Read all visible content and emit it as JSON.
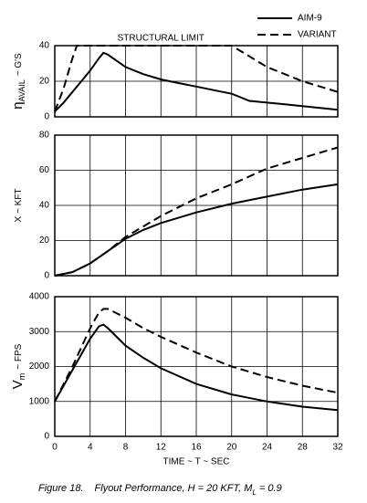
{
  "chart_data": [
    {
      "type": "line",
      "annotation": "STRUCTURAL LIMIT",
      "legend": "top-right",
      "ylabel": [
        "η",
        "AVAIL",
        "~ G'S"
      ],
      "xlim": [
        0,
        32
      ],
      "xticks": [
        0,
        4,
        8,
        12,
        16,
        20,
        24,
        28,
        32
      ],
      "xtick_labels": false,
      "ylim": [
        0,
        40
      ],
      "yticks": [
        0,
        20,
        40
      ],
      "grid": true,
      "series": [
        {
          "name": "AIM-9",
          "color": "#000000",
          "dash": false,
          "x": [
            0,
            1,
            2,
            3,
            4,
            5,
            5.5,
            6,
            8,
            10,
            12,
            14,
            16,
            18,
            20,
            21,
            22,
            24,
            26,
            28,
            30,
            32
          ],
          "values": [
            3,
            8,
            14,
            20,
            26,
            33,
            36,
            35,
            28,
            24,
            21,
            19,
            17,
            15,
            13,
            11,
            9,
            8,
            7,
            6,
            5,
            4
          ]
        },
        {
          "name": "VARIANT",
          "color": "#000000",
          "dash": true,
          "x": [
            0,
            1,
            2,
            2.5,
            4,
            8,
            12,
            16,
            20,
            22,
            24,
            26,
            28,
            30,
            32
          ],
          "values": [
            3,
            16,
            33,
            40,
            40,
            40,
            40,
            40,
            40,
            34,
            28,
            24,
            20,
            17,
            14
          ]
        }
      ]
    },
    {
      "type": "line",
      "ylabel": [
        "X ~ KFT"
      ],
      "xlim": [
        0,
        32
      ],
      "xticks": [
        0,
        4,
        8,
        12,
        16,
        20,
        24,
        28,
        32
      ],
      "xtick_labels": false,
      "ylim": [
        0,
        80
      ],
      "yticks": [
        0,
        20,
        40,
        60,
        80
      ],
      "grid": true,
      "series": [
        {
          "name": "AIM-9",
          "color": "#000000",
          "dash": false,
          "x": [
            0,
            2,
            4,
            6,
            8,
            10,
            12,
            16,
            20,
            24,
            28,
            32
          ],
          "values": [
            0,
            2,
            7,
            14,
            21,
            26,
            30,
            36,
            41,
            45,
            49,
            52
          ]
        },
        {
          "name": "VARIANT",
          "color": "#000000",
          "dash": true,
          "x": [
            0,
            2,
            4,
            6,
            8,
            10,
            12,
            16,
            20,
            24,
            28,
            32
          ],
          "values": [
            0,
            2,
            7,
            14,
            22,
            28,
            34,
            44,
            52,
            61,
            67,
            73
          ]
        }
      ]
    },
    {
      "type": "line",
      "ylabel": [
        "V",
        "m",
        "~ FPS"
      ],
      "xlabel": "TIME ~ T ~ SEC",
      "xlim": [
        0,
        32
      ],
      "xticks": [
        0,
        4,
        8,
        12,
        16,
        20,
        24,
        28,
        32
      ],
      "xtick_labels": true,
      "ylim": [
        0,
        4000
      ],
      "yticks": [
        0,
        1000,
        2000,
        3000,
        4000
      ],
      "grid": true,
      "series": [
        {
          "name": "AIM-9",
          "color": "#000000",
          "dash": false,
          "x": [
            0,
            2,
            4,
            5,
            5.5,
            6,
            8,
            10,
            12,
            16,
            20,
            24,
            28,
            32
          ],
          "values": [
            1000,
            1900,
            2800,
            3150,
            3200,
            3100,
            2600,
            2250,
            1950,
            1500,
            1200,
            1000,
            850,
            750
          ]
        },
        {
          "name": "VARIANT",
          "color": "#000000",
          "dash": true,
          "x": [
            0,
            2,
            4,
            5,
            5.5,
            6,
            8,
            10,
            12,
            16,
            20,
            24,
            28,
            32
          ],
          "values": [
            1000,
            2000,
            3100,
            3550,
            3650,
            3650,
            3400,
            3100,
            2850,
            2400,
            2000,
            1700,
            1450,
            1250
          ]
        }
      ]
    }
  ],
  "caption": [
    "Figure 18.",
    "Flyout Performance, H = 20 KFT, M",
    "L",
    "= 0.9"
  ]
}
